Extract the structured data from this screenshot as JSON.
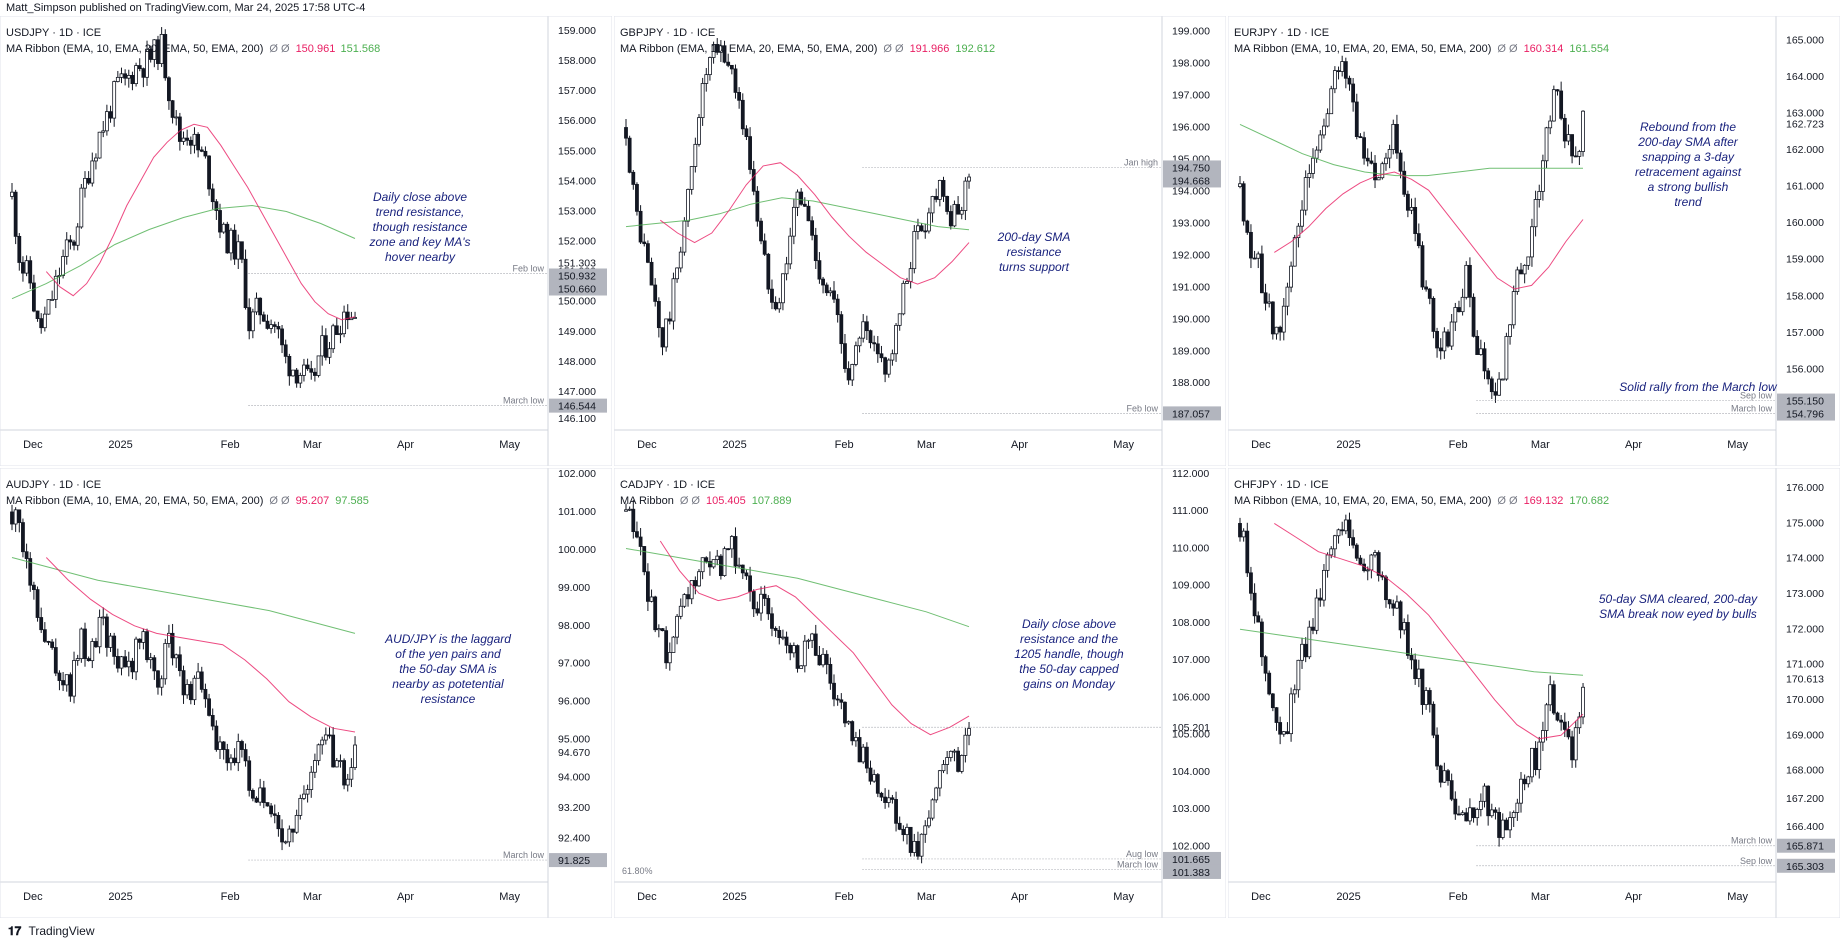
{
  "header": {
    "text": "Matt_Simpson published on TradingView.com, Mar 24, 2025 17:58 UTC-4"
  },
  "footer": {
    "logo_icon": "tradingview-logo-icon",
    "brand": "TradingView"
  },
  "colors": {
    "ema_fast": "#e91e63",
    "ema_slow": "#4caf50",
    "annotation": "#1a237e",
    "candle": "#131722",
    "axis_tag_bg": "#b2b5be",
    "text_muted": "#787b86"
  },
  "chart_data": [
    {
      "type": "candlestick",
      "symbol": "USDJPY · 1D · ICE",
      "indicator": "MA Ribbon (EMA, 10, EMA, 20, EMA, 50, EMA, 200)",
      "indicator_values": [
        "150.961",
        "151.568"
      ],
      "x_ticks": [
        "Dec",
        "2025",
        "Feb",
        "Mar",
        "Apr",
        "May"
      ],
      "ylim": [
        145.8,
        159.3
      ],
      "y_ticks": [
        146.1,
        147.0,
        148.0,
        149.0,
        150.0,
        151.0,
        152.0,
        153.0,
        154.0,
        155.0,
        156.0,
        157.0,
        158.0,
        159.0
      ],
      "y_tick_labels": [
        "146.100",
        "147.000",
        "148.000",
        "149.000",
        "150.000",
        "151.000",
        "152.000",
        "153.000",
        "154.000",
        "155.000",
        "156.000",
        "157.000",
        "158.000",
        "159.000"
      ],
      "price_tags": [
        {
          "value": 151.303,
          "label": "151.303"
        },
        {
          "value": 150.932,
          "label": "150.932"
        },
        {
          "value": 150.66,
          "label": "150.660"
        },
        {
          "value": 146.544,
          "label": "146.544"
        }
      ],
      "levels": [
        {
          "value": 150.932,
          "label": "Feb low"
        },
        {
          "value": 146.544,
          "label": "March low"
        }
      ],
      "price_path": [
        153.5,
        151.2,
        150.8,
        149.0,
        149.6,
        150.6,
        151.6,
        152.0,
        153.6,
        154.7,
        155.6,
        156.3,
        157.2,
        157.3,
        157.8,
        157.9,
        158.2,
        158.5,
        156.8,
        155.4,
        155.7,
        155.1,
        154.6,
        153.4,
        152.2,
        151.9,
        151.5,
        149.2,
        149.8,
        149.5,
        149.2,
        148.1,
        147.8,
        147.6,
        147.2,
        148.3,
        148.7,
        149.2,
        149.8,
        149.5
      ],
      "ema_fast": [
        151.0,
        150.5,
        150.2,
        150.6,
        151.3,
        152.2,
        153.2,
        154.0,
        154.8,
        155.3,
        155.7,
        155.9,
        155.8,
        155.2,
        154.5,
        153.8,
        153.0,
        152.2,
        151.4,
        150.6,
        150.0,
        149.6,
        149.4,
        149.5
      ],
      "ema_slow": [
        150.1,
        150.6,
        151.2,
        151.9,
        152.4,
        152.8,
        153.1,
        153.2,
        153.0,
        152.6,
        152.1
      ],
      "annotation": "Daily close above trend resistance, though resistance zone and key MA's hover nearby"
    },
    {
      "type": "candlestick",
      "symbol": "GBPJPY · 1D · ICE",
      "indicator": "MA Ribbon (EMA, 10, EMA, 20, EMA, 50, EMA, 200)",
      "indicator_values": [
        "191.966",
        "192.612"
      ],
      "x_ticks": [
        "Dec",
        "2025",
        "Feb",
        "Mar",
        "Apr",
        "May"
      ],
      "ylim": [
        186.6,
        199.3
      ],
      "y_ticks": [
        188.0,
        189.0,
        190.0,
        191.0,
        192.0,
        193.0,
        194.0,
        195.0,
        196.0,
        197.0,
        198.0,
        199.0
      ],
      "y_tick_labels": [
        "188.000",
        "189.000",
        "190.000",
        "191.000",
        "192.000",
        "193.000",
        "194.000",
        "195.000",
        "196.000",
        "197.000",
        "198.000",
        "199.000"
      ],
      "price_tags": [
        {
          "value": 194.75,
          "label": "194.750"
        },
        {
          "value": 194.668,
          "label": "194.668"
        },
        {
          "value": 187.057,
          "label": "187.057"
        }
      ],
      "levels": [
        {
          "value": 194.75,
          "label": "Jan high"
        },
        {
          "value": 187.057,
          "label": "Feb low"
        }
      ],
      "price_path": [
        196.0,
        193.5,
        192.2,
        190.8,
        189.2,
        190.4,
        192.3,
        194.0,
        196.5,
        197.8,
        198.4,
        198.2,
        197.6,
        196.0,
        194.5,
        192.2,
        191.0,
        190.6,
        192.4,
        193.9,
        193.4,
        192.0,
        191.1,
        190.5,
        189.0,
        188.2,
        189.8,
        189.1,
        188.7,
        188.6,
        189.6,
        191.2,
        192.6,
        193.0,
        193.8,
        194.5,
        193.0,
        193.4,
        194.7
      ],
      "ema_fast": [
        193.1,
        192.7,
        192.4,
        192.7,
        193.4,
        194.2,
        194.8,
        194.9,
        194.5,
        193.9,
        193.2,
        192.6,
        192.1,
        191.7,
        191.3,
        191.1,
        191.3,
        191.8,
        192.4
      ],
      "ema_slow": [
        192.9,
        193.0,
        193.1,
        193.3,
        193.6,
        193.8,
        193.7,
        193.5,
        193.3,
        193.1,
        192.9,
        192.8
      ],
      "annotation": "200-day SMA resistance turns support"
    },
    {
      "type": "candlestick",
      "symbol": "EURJPY · 1D · ICE",
      "indicator": "MA Ribbon (EMA, 10, EMA, 20, EMA, 50, EMA, 200)",
      "indicator_values": [
        "160.314",
        "161.554"
      ],
      "x_ticks": [
        "Dec",
        "2025",
        "Feb",
        "Mar",
        "Apr",
        "May"
      ],
      "ylim": [
        154.4,
        165.5
      ],
      "y_ticks": [
        155.0,
        156.0,
        157.0,
        158.0,
        159.0,
        160.0,
        161.0,
        162.0,
        163.0,
        164.0,
        165.0
      ],
      "y_tick_labels": [
        "155.000",
        "156.000",
        "157.000",
        "158.000",
        "159.000",
        "160.000",
        "161.000",
        "162.000",
        "163.000",
        "164.000",
        "165.000"
      ],
      "price_tags": [
        {
          "value": 162.723,
          "label": "162.723"
        },
        {
          "value": 155.15,
          "label": "155.150"
        },
        {
          "value": 154.796,
          "label": "154.796"
        }
      ],
      "levels": [
        {
          "value": 155.15,
          "label": "Sep low"
        },
        {
          "value": 154.796,
          "label": "March low"
        }
      ],
      "price_path": [
        161.0,
        159.6,
        158.8,
        157.8,
        156.8,
        157.8,
        159.6,
        160.6,
        161.6,
        162.4,
        163.5,
        164.2,
        164.0,
        162.6,
        162.0,
        161.2,
        162.0,
        162.6,
        161.4,
        160.2,
        158.8,
        157.6,
        156.4,
        156.8,
        157.4,
        158.8,
        156.6,
        156.0,
        155.6,
        155.4,
        157.8,
        158.8,
        159.4,
        160.8,
        162.6,
        163.5,
        162.2,
        161.8,
        162.7
      ],
      "ema_fast": [
        159.2,
        159.5,
        159.9,
        160.4,
        160.8,
        161.1,
        161.3,
        161.4,
        161.2,
        160.9,
        160.3,
        159.7,
        159.1,
        158.5,
        158.2,
        158.3,
        158.8,
        159.5,
        160.1
      ],
      "ema_slow": [
        162.7,
        162.3,
        161.9,
        161.6,
        161.4,
        161.3,
        161.3,
        161.4,
        161.5,
        161.5,
        161.5,
        161.5
      ],
      "annotations": [
        "Rebound from the 200-day SMA after snapping a 3-day retracement against a strong bullish trend",
        "Solid rally from the March low"
      ]
    },
    {
      "type": "candlestick",
      "symbol": "AUDJPY · 1D · ICE",
      "indicator": "MA Ribbon (EMA, 10, EMA, 20, EMA, 50, EMA, 200)",
      "indicator_values": [
        "95.207",
        "97.585"
      ],
      "x_ticks": [
        "Dec",
        "2025",
        "Feb",
        "Mar",
        "Apr",
        "May"
      ],
      "ylim": [
        91.3,
        102.0
      ],
      "y_ticks": [
        92.4,
        93.2,
        94.0,
        95.0,
        96.0,
        97.0,
        98.0,
        99.0,
        100.0,
        101.0,
        102.0
      ],
      "y_tick_labels": [
        "92.400",
        "93.200",
        "94.000",
        "95.000",
        "96.000",
        "97.000",
        "98.000",
        "99.000",
        "100.000",
        "101.000",
        "102.000"
      ],
      "price_tags": [
        {
          "value": 94.67,
          "label": "94.670"
        },
        {
          "value": 91.825,
          "label": "91.825"
        }
      ],
      "levels": [
        {
          "value": 91.825,
          "label": "March low"
        }
      ],
      "price_path": [
        101.0,
        100.2,
        99.1,
        98.2,
        97.4,
        96.8,
        96.4,
        97.6,
        97.2,
        98.2,
        97.6,
        97.0,
        96.8,
        97.8,
        97.2,
        96.6,
        97.6,
        97.0,
        96.1,
        96.6,
        95.6,
        94.8,
        94.4,
        94.9,
        94.1,
        93.5,
        93.1,
        92.8,
        92.3,
        93.2,
        93.8,
        94.6,
        95.2,
        94.4,
        93.8,
        94.7
      ],
      "ema_fast": [
        99.8,
        99.2,
        98.7,
        98.3,
        98.0,
        97.8,
        97.7,
        97.6,
        97.5,
        97.1,
        96.6,
        96.0,
        95.6,
        95.3,
        95.2
      ],
      "ema_slow": [
        99.8,
        99.5,
        99.2,
        99.0,
        98.8,
        98.6,
        98.4,
        98.1,
        97.8
      ],
      "annotation": "AUD/JPY is the laggard of the yen pairs and the 50-day SMA is nearby as potetential resistance"
    },
    {
      "type": "candlestick",
      "symbol": "CADJPY · 1D · ICE",
      "indicator": "MA Ribbon",
      "indicator_values": [
        "105.405",
        "107.889"
      ],
      "x_ticks": [
        "Dec",
        "2025",
        "Feb",
        "Mar",
        "Apr",
        "May"
      ],
      "ylim": [
        101.1,
        112.0
      ],
      "y_ticks": [
        102.0,
        103.0,
        104.0,
        105.0,
        106.0,
        107.0,
        108.0,
        109.0,
        110.0,
        111.0,
        112.0
      ],
      "y_tick_labels": [
        "102.000",
        "103.000",
        "104.000",
        "105.000",
        "106.000",
        "107.000",
        "108.000",
        "109.000",
        "110.000",
        "111.000",
        "112.000"
      ],
      "price_tags": [
        {
          "value": 105.201,
          "label": "105.201"
        },
        {
          "value": 101.665,
          "label": "101.665"
        },
        {
          "value": 101.383,
          "label": "101.383"
        }
      ],
      "levels": [
        {
          "value": 105.201,
          "label": ""
        },
        {
          "value": 101.665,
          "label": "Aug low"
        },
        {
          "value": 101.383,
          "label": "March low"
        }
      ],
      "price_path": [
        111.0,
        110.2,
        109.0,
        107.6,
        107.2,
        108.0,
        108.9,
        109.4,
        109.3,
        109.6,
        110.0,
        109.2,
        108.6,
        108.3,
        108.0,
        107.6,
        107.0,
        107.6,
        107.2,
        106.4,
        105.6,
        104.8,
        104.6,
        104.0,
        103.4,
        102.8,
        102.3,
        101.8,
        102.6,
        103.5,
        104.4,
        104.1,
        105.2
      ],
      "ema_fast": [
        110.2,
        109.4,
        108.8,
        108.6,
        108.7,
        108.9,
        109.0,
        108.7,
        108.2,
        107.7,
        107.2,
        106.5,
        105.8,
        105.3,
        105.0,
        105.2,
        105.5
      ],
      "ema_slow": [
        110.0,
        109.8,
        109.6,
        109.4,
        109.2,
        108.9,
        108.6,
        108.3,
        107.9
      ],
      "fib_label": "61.80%",
      "annotation": "Daily close above resistance and the 1205 handle, though the 50-day capped gains on Monday"
    },
    {
      "type": "candlestick",
      "symbol": "CHFJPY · 1D · ICE",
      "indicator": "MA Ribbon (EMA, 10, EMA, 20, EMA, 50, EMA, 200)",
      "indicator_values": [
        "169.132",
        "170.682"
      ],
      "x_ticks": [
        "Dec",
        "2025",
        "Feb",
        "Mar",
        "Apr",
        "May"
      ],
      "ylim": [
        164.9,
        176.4
      ],
      "y_ticks": [
        166.4,
        167.2,
        168.0,
        169.0,
        170.0,
        171.0,
        172.0,
        173.0,
        174.0,
        175.0,
        176.0
      ],
      "y_tick_labels": [
        "166.400",
        "167.200",
        "168.000",
        "169.000",
        "170.000",
        "171.000",
        "172.000",
        "173.000",
        "174.000",
        "175.000",
        "176.000"
      ],
      "price_tags": [
        {
          "value": 170.613,
          "label": "170.613"
        },
        {
          "value": 165.871,
          "label": "165.871"
        },
        {
          "value": 165.303,
          "label": "165.303"
        }
      ],
      "levels": [
        {
          "value": 165.871,
          "label": "March low"
        },
        {
          "value": 165.303,
          "label": "Sep low"
        }
      ],
      "price_path": [
        175.0,
        173.4,
        171.2,
        169.6,
        168.8,
        170.6,
        171.6,
        172.8,
        174.4,
        175.2,
        174.6,
        173.8,
        174.2,
        173.2,
        172.6,
        171.8,
        170.6,
        169.8,
        168.2,
        167.2,
        166.4,
        166.8,
        167.4,
        166.6,
        166.2,
        167.2,
        168.0,
        168.6,
        170.2,
        169.0,
        168.4,
        170.6
      ],
      "ema_fast": [
        175.0,
        174.6,
        174.2,
        174.0,
        173.8,
        173.5,
        173.0,
        172.4,
        171.6,
        170.8,
        170.0,
        169.3,
        168.9,
        169.0,
        169.6
      ],
      "ema_slow": [
        172.0,
        171.8,
        171.6,
        171.4,
        171.2,
        171.0,
        170.8,
        170.7
      ],
      "annotation": "50-day SMA cleared, 200-day SMA break now eyed by bulls"
    }
  ]
}
